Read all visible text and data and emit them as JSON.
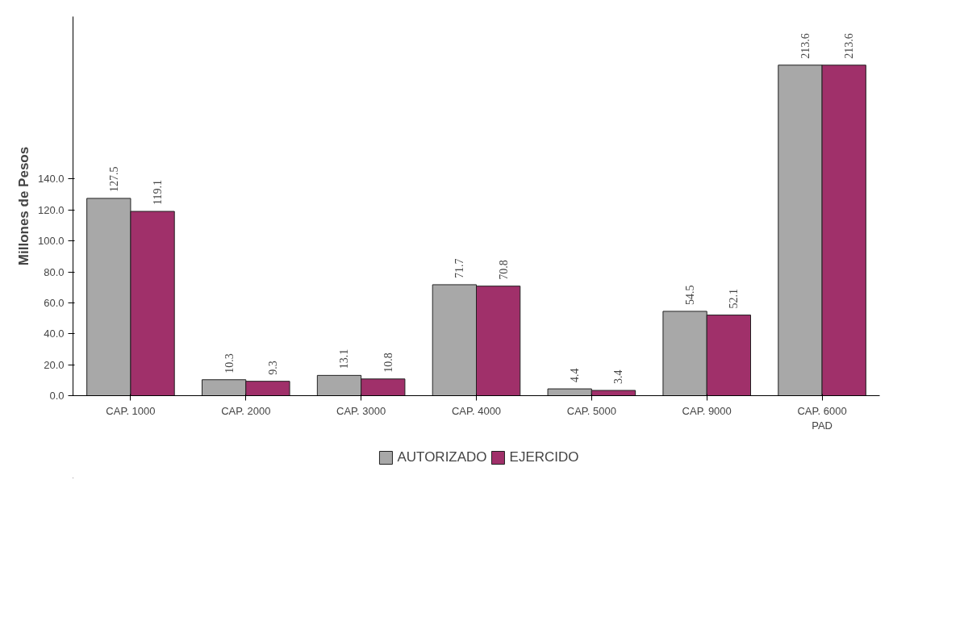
{
  "chart_data": {
    "type": "bar",
    "ylabel": "Millones de Pesos",
    "categories": [
      "CAP. 1000",
      "CAP. 2000",
      "CAP. 3000",
      "CAP. 4000",
      "CAP. 5000",
      "CAP. 9000",
      "CAP. 6000\nPAD"
    ],
    "series": [
      {
        "name": "AUTORIZADO",
        "color": "#a8a8a8",
        "values": [
          127.5,
          10.3,
          13.1,
          71.7,
          4.4,
          54.5,
          213.6
        ]
      },
      {
        "name": "EJERCIDO",
        "color": "#a0306a",
        "values": [
          119.1,
          9.3,
          10.8,
          70.8,
          3.4,
          52.1,
          213.6
        ]
      }
    ],
    "ylim": [
      0,
      245
    ],
    "yticks": [
      {
        "value": 0,
        "label": "0.0"
      },
      {
        "value": 20,
        "label": "20.0"
      },
      {
        "value": 40,
        "label": "40.0"
      },
      {
        "value": 60,
        "label": "60.0"
      },
      {
        "value": 80,
        "label": "80.0"
      },
      {
        "value": 100,
        "label": "100.0"
      },
      {
        "value": 120,
        "label": "120.0"
      },
      {
        "value": 140,
        "label": "140.0"
      }
    ],
    "data_labels": true,
    "grid": false,
    "legend": "bottom"
  }
}
